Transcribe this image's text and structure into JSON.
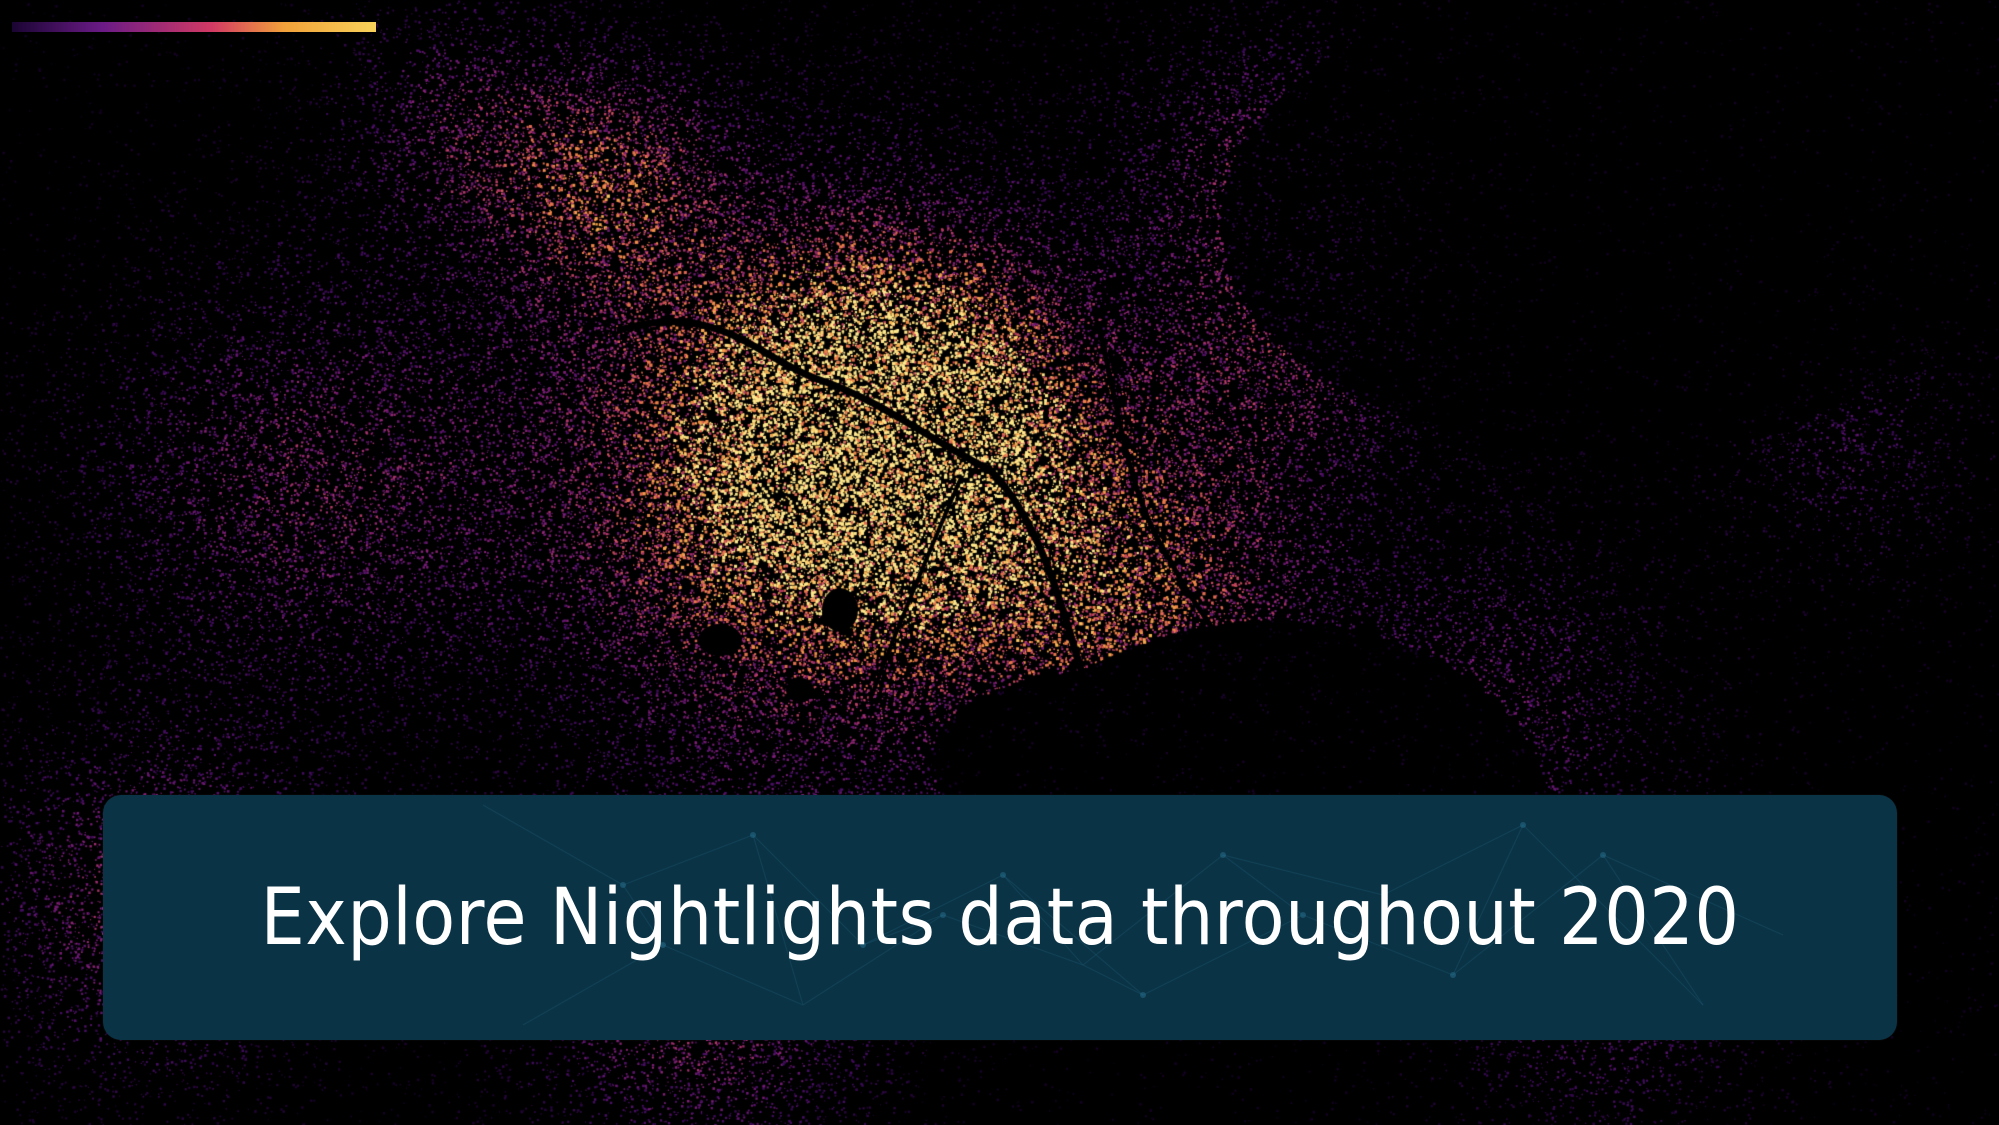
{
  "banner": {
    "title": "Explore Nightlights data throughout 2020",
    "background_color": "#0b3346"
  },
  "accent_bar": {
    "colors": [
      "#1a0533",
      "#6b1b86",
      "#d23a64",
      "#f2a23a",
      "#f8d25a"
    ]
  },
  "map": {
    "description_icon": "nightlights-map",
    "palette": [
      "#000000",
      "#2a0840",
      "#5a1470",
      "#8c2a7e",
      "#c24a6a",
      "#e77a4a",
      "#f6ad47",
      "#fde27a"
    ]
  }
}
